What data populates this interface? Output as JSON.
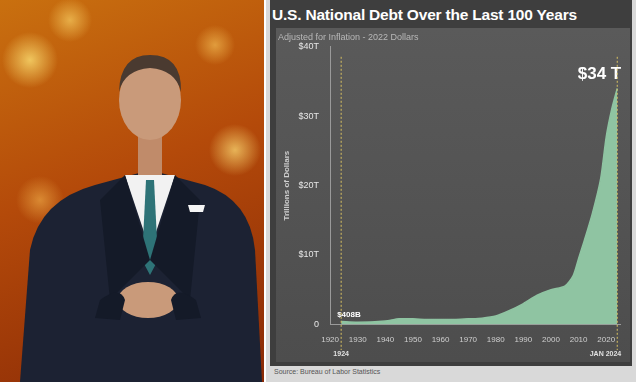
{
  "chart_data": {
    "type": "area",
    "title": "U.S. National Debt Over the Last 100 Years",
    "subtitle": "Adjusted for Inflation - 2022 Dollars",
    "y_label": "Trillions of Dollars",
    "source": "Source: Bureau of Labor Statistics",
    "x": [
      1924,
      1930,
      1940,
      1945,
      1950,
      1955,
      1960,
      1965,
      1970,
      1975,
      1980,
      1985,
      1990,
      1995,
      2000,
      2005,
      2008,
      2010,
      2012,
      2015,
      2018,
      2020,
      2022,
      2024
    ],
    "values": [
      0.408,
      0.3,
      0.5,
      0.8,
      0.8,
      0.7,
      0.7,
      0.7,
      0.8,
      0.9,
      1.2,
      2.0,
      3.0,
      4.2,
      5.0,
      5.5,
      7.0,
      9.5,
      12,
      16,
      21,
      27,
      31,
      34
    ],
    "color": "#8fc4a2",
    "xlim": [
      1920,
      2025
    ],
    "xticks": [
      1920,
      1930,
      1940,
      1950,
      1960,
      1970,
      1980,
      1990,
      2000,
      2010,
      2020
    ],
    "ylim": [
      0,
      40
    ],
    "yticks": [
      0,
      {
        "value": 10,
        "label": "$10T"
      },
      {
        "value": 20,
        "label": "$20T"
      },
      {
        "value": 30,
        "label": "$30T"
      },
      {
        "value": 40,
        "label": "$40T"
      }
    ],
    "grid": false,
    "annotations": [
      {
        "text": "$408B",
        "x": 1924,
        "y": 0.408
      },
      {
        "text": "$34 T",
        "x": 2024,
        "y": 34
      },
      {
        "text": "1924",
        "x": 1924
      },
      {
        "text": "JAN 2024",
        "x": 2024
      }
    ]
  }
}
